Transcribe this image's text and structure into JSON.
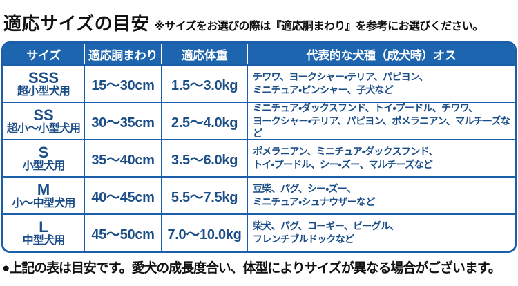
{
  "page": {
    "title": "適応サイズの目安",
    "note": "※サイズをお選びの際は『適応胴まわり』を参考にお選びください。",
    "footnote": "●上記の表は目安です。愛犬の成長度合い、体型によりサイズが異なる場合がございます。"
  },
  "colors": {
    "header_bg": "#1d65ae",
    "table_border": "#1b5ea9",
    "cell_text": "#1b4d87",
    "header_text": "#ffffff"
  },
  "table": {
    "headers": [
      "サイズ",
      "適応胴まわり",
      "適応体重",
      "代表的な犬種（成犬時）オス"
    ],
    "rows": [
      {
        "size_code": "SSS",
        "size_label": "超小型犬用",
        "girth": "15～30cm",
        "weight": "1.5～3.0kg",
        "breeds": "チワワ、ヨークシャー・テリア、パピヨン、\nミニチュア・ピンシャー、子犬など"
      },
      {
        "size_code": "SS",
        "size_label": "超小～小型犬用",
        "girth": "30～35cm",
        "weight": "2.5～4.0kg",
        "breeds": "ミニチュア・ダックスフンド、トイ・プードル、チワワ、\nヨークシャー・テリア、パピヨン、ポメラニアン、マルチーズなど"
      },
      {
        "size_code": "S",
        "size_label": "小型犬用",
        "girth": "35～40cm",
        "weight": "3.5～6.0kg",
        "breeds": "ポメラニアン、ミニチュア・ダックスフンド、\nトイ・プードル、シー・ズー、マルチーズなど"
      },
      {
        "size_code": "M",
        "size_label": "小～中型犬用",
        "girth": "40～45cm",
        "weight": "5.5～7.5kg",
        "breeds": "豆柴、パグ、シー・ズー、\nミニチュア・シュナウザーなど"
      },
      {
        "size_code": "L",
        "size_label": "中型犬用",
        "girth": "45～50cm",
        "weight": "7.0～10.0kg",
        "breeds": "柴犬、パグ、コーギー、ビーグル、\nフレンチブルドックなど"
      }
    ]
  }
}
